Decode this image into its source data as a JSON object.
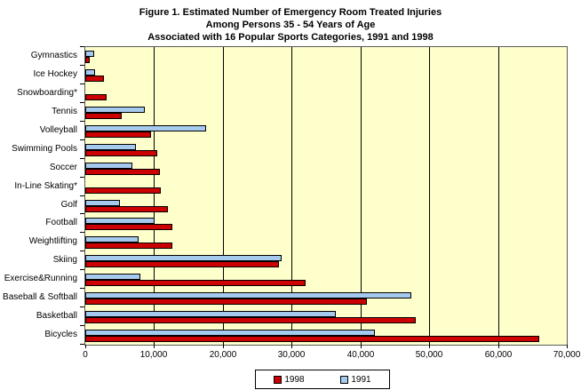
{
  "title": {
    "line1": "Figure 1. Estimated Number of Emergency Room Treated Injuries",
    "line2": "Among Persons 35 - 54 Years of Age",
    "line3": "Associated with 16 Popular Sports Categories, 1991 and 1998"
  },
  "chart_data": {
    "type": "bar",
    "orientation": "horizontal",
    "title": "Figure 1. Estimated Number of Emergency Room Treated Injuries Among Persons 35 - 54 Years of Age Associated with 16 Popular Sports Categories, 1991 and 1998",
    "categories": [
      "Gymnastics",
      "Ice Hockey",
      "Snowboarding*",
      "Tennis",
      "Volleyball",
      "Swimming Pools",
      "Soccer",
      "In-Line Skating*",
      "Golf",
      "Football",
      "Weightlifting",
      "Skiing",
      "Exercise&Running",
      "Baseball & Softball",
      "Basketball",
      "Bicycles"
    ],
    "series": [
      {
        "name": "1998",
        "color": "#CC0000",
        "values": [
          600,
          2700,
          3100,
          5300,
          9600,
          10400,
          10900,
          11000,
          12000,
          12700,
          12700,
          28100,
          32000,
          40900,
          48100,
          66000
        ]
      },
      {
        "name": "1991",
        "color": "#A6C9EE",
        "values": [
          1300,
          1400,
          null,
          8700,
          17600,
          7400,
          6800,
          null,
          5100,
          10100,
          7800,
          28600,
          8000,
          47400,
          36400,
          42100
        ]
      }
    ],
    "bar_order_in_band_top_to_bottom": [
      "1991",
      "1998"
    ],
    "xlim": [
      0,
      70000
    ],
    "x_ticks": [
      "0",
      "10,000",
      "20,000",
      "30,000",
      "40,000",
      "50,000",
      "60,000",
      "70,000"
    ],
    "grid": true,
    "plot_bg": "#FFFFCC",
    "legend_position": "bottom"
  },
  "legend": {
    "items": [
      {
        "label": "1998",
        "color": "#CC0000"
      },
      {
        "label": "1991",
        "color": "#A6C9EE"
      }
    ]
  }
}
